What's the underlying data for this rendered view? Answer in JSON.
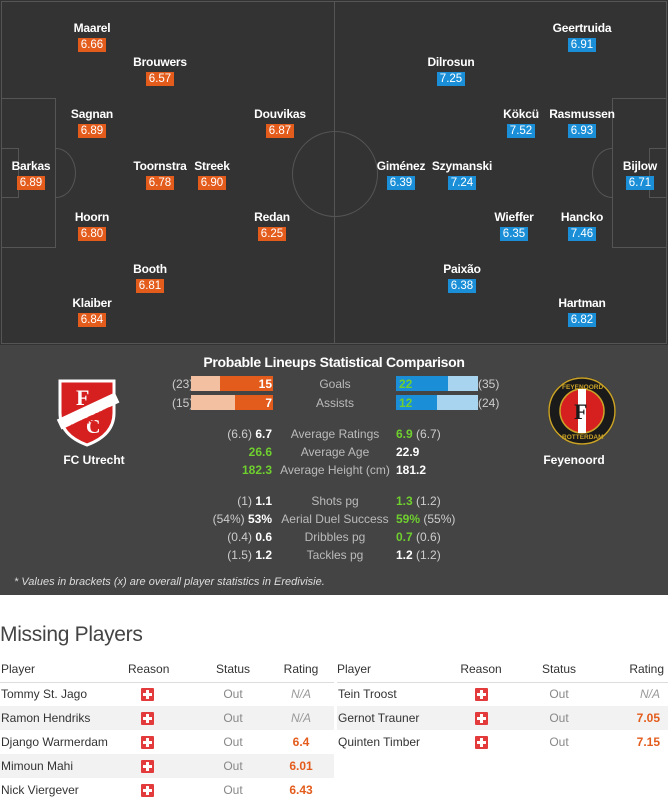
{
  "pitch": {
    "home_players": [
      {
        "name": "Maarel",
        "rating": "6.66"
      },
      {
        "name": "Brouwers",
        "rating": "6.57"
      },
      {
        "name": "Sagnan",
        "rating": "6.89"
      },
      {
        "name": "Douvikas",
        "rating": "6.87"
      },
      {
        "name": "Barkas",
        "rating": "6.89"
      },
      {
        "name": "Toornstra",
        "rating": "6.78"
      },
      {
        "name": "Streek",
        "rating": "6.90"
      },
      {
        "name": "Hoorn",
        "rating": "6.80"
      },
      {
        "name": "Redan",
        "rating": "6.25"
      },
      {
        "name": "Booth",
        "rating": "6.81"
      },
      {
        "name": "Klaiber",
        "rating": "6.84"
      }
    ],
    "away_players": [
      {
        "name": "Geertruida",
        "rating": "6.91"
      },
      {
        "name": "Dilrosun",
        "rating": "7.25"
      },
      {
        "name": "Kökcü",
        "rating": "7.52"
      },
      {
        "name": "Rasmussen",
        "rating": "6.93"
      },
      {
        "name": "Giménez",
        "rating": "6.39"
      },
      {
        "name": "Szymanski",
        "rating": "7.24"
      },
      {
        "name": "Bijlow",
        "rating": "6.71"
      },
      {
        "name": "Wieffer",
        "rating": "6.35"
      },
      {
        "name": "Hancko",
        "rating": "7.46"
      },
      {
        "name": "Paixão",
        "rating": "6.38"
      },
      {
        "name": "Hartman",
        "rating": "6.82"
      }
    ]
  },
  "comparison": {
    "title": "Probable Lineups Statistical Comparison",
    "home_team": "FC Utrecht",
    "away_team": "Feyenoord",
    "goals": {
      "label": "Goals",
      "home": "15",
      "home_total": "(23)",
      "away": "22",
      "away_total": "(35)"
    },
    "assists": {
      "label": "Assists",
      "home": "7",
      "home_total": "(15)",
      "away": "12",
      "away_total": "(24)"
    },
    "bar_fractions": {
      "goals_home": 0.652,
      "goals_away": 0.629,
      "assists_home": 0.467,
      "assists_away": 0.5
    },
    "group1": [
      {
        "label": "Average Ratings",
        "home_br": "(6.6)",
        "home": "6.7",
        "away": "6.9",
        "away_br": "(6.7)",
        "winner": "away"
      },
      {
        "label": "Average Age",
        "home_br": "",
        "home": "26.6",
        "away": "22.9",
        "away_br": "",
        "winner": "home"
      },
      {
        "label": "Average Height (cm)",
        "home_br": "",
        "home": "182.3",
        "away": "181.2",
        "away_br": "",
        "winner": "home"
      }
    ],
    "group2": [
      {
        "label": "Shots pg",
        "home_br": "(1)",
        "home": "1.1",
        "away": "1.3",
        "away_br": "(1.2)",
        "winner": "away"
      },
      {
        "label": "Aerial Duel Success",
        "home_br": "(54%)",
        "home": "53%",
        "away": "59%",
        "away_br": "(55%)",
        "winner": "away"
      },
      {
        "label": "Dribbles pg",
        "home_br": "(0.4)",
        "home": "0.6",
        "away": "0.7",
        "away_br": "(0.6)",
        "winner": "away"
      },
      {
        "label": "Tackles pg",
        "home_br": "(1.5)",
        "home": "1.2",
        "away": "1.2",
        "away_br": "(1.2)",
        "winner": "none"
      }
    ],
    "note": "* Values in brackets (x) are overall player statistics in Eredivisie."
  },
  "missing": {
    "title": "Missing Players",
    "headers": {
      "player": "Player",
      "reason": "Reason",
      "status": "Status",
      "rating": "Rating"
    },
    "home": [
      {
        "player": "Tommy St. Jago",
        "status": "Out",
        "rating": "N/A"
      },
      {
        "player": "Ramon Hendriks",
        "status": "Out",
        "rating": "N/A"
      },
      {
        "player": "Django Warmerdam",
        "status": "Out",
        "rating": "6.4"
      },
      {
        "player": "Mimoun Mahi",
        "status": "Out",
        "rating": "6.01"
      },
      {
        "player": "Nick Viergever",
        "status": "Out",
        "rating": "6.43"
      }
    ],
    "away": [
      {
        "player": "Tein Troost",
        "status": "Out",
        "rating": "N/A"
      },
      {
        "player": "Gernot Trauner",
        "status": "Out",
        "rating": "7.05"
      },
      {
        "player": "Quinten Timber",
        "status": "Out",
        "rating": "7.15"
      }
    ]
  },
  "colors": {
    "home": "#e35c1c",
    "away": "#1a8fd8",
    "green": "#6fcf2f",
    "cross": "#e33b3b"
  }
}
